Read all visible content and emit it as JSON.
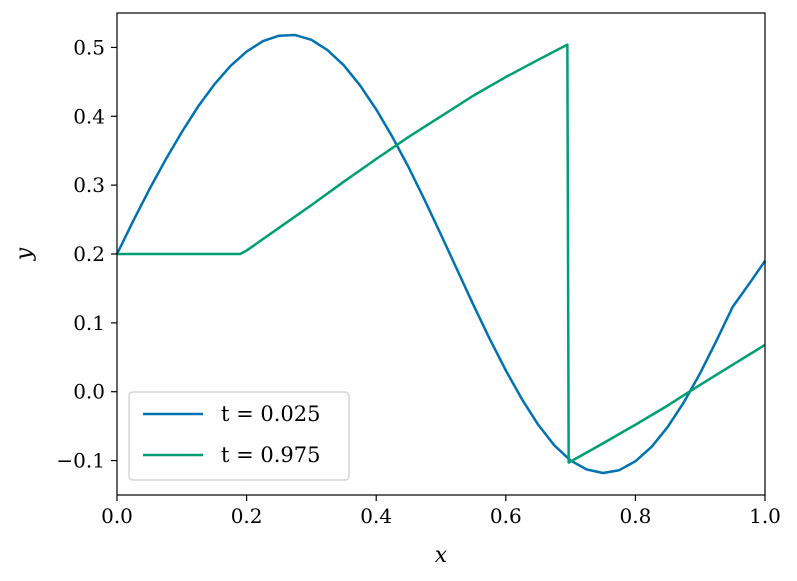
{
  "chart_data": {
    "type": "line",
    "title": "",
    "xlabel": "x",
    "ylabel": "y",
    "xlim": [
      0.0,
      1.0
    ],
    "ylim": [
      -0.15,
      0.55
    ],
    "grid": false,
    "legend_position": "lower-left",
    "x_ticks": [
      "0.0",
      "0.2",
      "0.4",
      "0.6",
      "0.8",
      "1.0"
    ],
    "y_ticks": [
      "−0.1",
      "0.0",
      "0.1",
      "0.2",
      "0.3",
      "0.4",
      "0.5"
    ],
    "series": [
      {
        "name": "t = 0.025",
        "color": "#0072b2",
        "x": [
          0.0,
          0.025,
          0.05,
          0.075,
          0.1,
          0.125,
          0.15,
          0.175,
          0.2,
          0.225,
          0.25,
          0.275,
          0.3,
          0.325,
          0.35,
          0.375,
          0.4,
          0.425,
          0.45,
          0.475,
          0.5,
          0.525,
          0.55,
          0.575,
          0.6,
          0.625,
          0.65,
          0.675,
          0.7,
          0.725,
          0.75,
          0.775,
          0.8,
          0.825,
          0.85,
          0.875,
          0.9,
          0.925,
          0.95,
          0.975,
          1.0
        ],
        "y": [
          0.2,
          0.248,
          0.294,
          0.337,
          0.377,
          0.414,
          0.446,
          0.473,
          0.494,
          0.509,
          0.517,
          0.518,
          0.511,
          0.496,
          0.474,
          0.445,
          0.41,
          0.37,
          0.326,
          0.278,
          0.228,
          0.177,
          0.126,
          0.077,
          0.031,
          -0.011,
          -0.048,
          -0.078,
          -0.1,
          -0.113,
          -0.118,
          -0.114,
          -0.101,
          -0.08,
          -0.051,
          -0.015,
          0.027,
          0.074,
          0.123,
          0.156,
          0.19
        ]
      },
      {
        "name": "t = 0.975",
        "color": "#009e73",
        "x": [
          0.0,
          0.19,
          0.2,
          0.25,
          0.3,
          0.35,
          0.4,
          0.45,
          0.5,
          0.55,
          0.6,
          0.65,
          0.695,
          0.697,
          0.75,
          0.8,
          0.85,
          0.9,
          0.95,
          1.0
        ],
        "y": [
          0.2,
          0.2,
          0.205,
          0.238,
          0.271,
          0.305,
          0.338,
          0.37,
          0.4,
          0.43,
          0.457,
          0.482,
          0.504,
          -0.103,
          -0.075,
          -0.048,
          -0.02,
          0.01,
          0.039,
          0.068
        ]
      }
    ]
  }
}
